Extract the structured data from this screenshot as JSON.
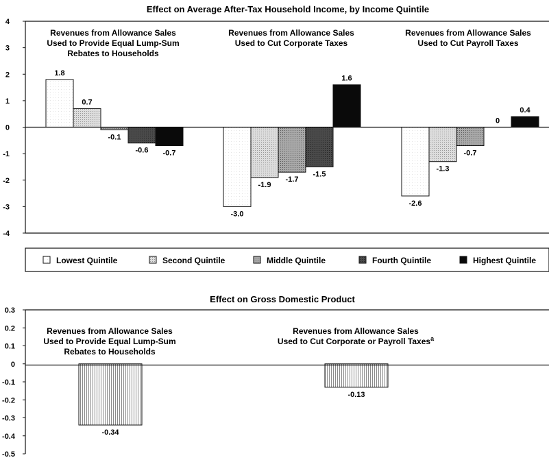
{
  "chart_data": [
    {
      "type": "bar",
      "title": "Effect on Average After-Tax Household Income, by Income Quintile",
      "ylim": [
        -4,
        4
      ],
      "yticks": [
        "4",
        "3",
        "2",
        "1",
        "0",
        "-1",
        "-2",
        "-3",
        "-4"
      ],
      "groups": [
        {
          "label": [
            "Revenues from Allowance Sales",
            "Used to Provide Equal Lump-Sum",
            "Rebates to Households"
          ],
          "values": [
            1.8,
            0.7,
            -0.1,
            -0.6,
            -0.7
          ],
          "labels": [
            "1.8",
            "0.7",
            "-0.1",
            "-0.6",
            "-0.7"
          ]
        },
        {
          "label": [
            "Revenues from Allowance Sales",
            "Used to Cut Corporate Taxes"
          ],
          "values": [
            -3.0,
            -1.9,
            -1.7,
            -1.5,
            1.6
          ],
          "labels": [
            "-3.0",
            "-1.9",
            "-1.7",
            "-1.5",
            "1.6"
          ]
        },
        {
          "label": [
            "Revenues from Allowance Sales",
            "Used to Cut Payroll Taxes"
          ],
          "values": [
            -2.6,
            -1.3,
            -0.7,
            0,
            0.4
          ],
          "labels": [
            "-2.6",
            "-1.3",
            "-0.7",
            "0",
            "0.4"
          ]
        }
      ],
      "series": [
        {
          "name": "Lowest Quintile",
          "color": "#ffffff"
        },
        {
          "name": "Second Quintile",
          "color": "#d0d0d0"
        },
        {
          "name": "Middle Quintile",
          "color": "#a0a0a0"
        },
        {
          "name": "Fourth Quintile",
          "color": "#4a4a4a"
        },
        {
          "name": "Highest Quintile",
          "color": "#0a0a0a"
        }
      ],
      "legend": "bottom"
    },
    {
      "type": "bar",
      "title": "Effect on Gross Domestic Product",
      "ylim": [
        -0.5,
        0.3
      ],
      "yticks": [
        "0.3",
        "0.2",
        "0.1",
        "0",
        "-0.1",
        "-0.2",
        "-0.3",
        "-0.4",
        "-0.5"
      ],
      "groups": [
        {
          "label": [
            "Revenues from Allowance Sales",
            "Used to Provide Equal Lump-Sum",
            "Rebates to Households"
          ],
          "value": -0.34,
          "value_label": "-0.34"
        },
        {
          "label": [
            "Revenues from Allowance Sales",
            "Used to Cut Corporate or Payroll Taxes"
          ],
          "superscript": "a",
          "value": -0.13,
          "value_label": "-0.13"
        }
      ]
    }
  ]
}
